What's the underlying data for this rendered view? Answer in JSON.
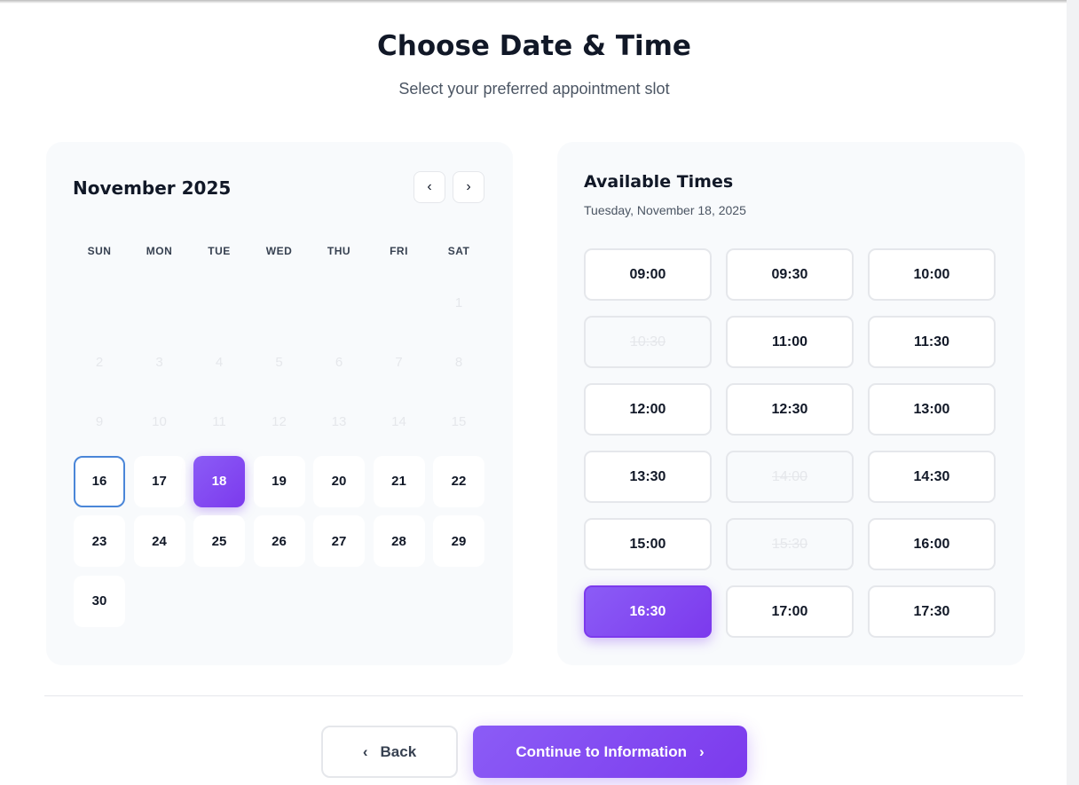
{
  "header": {
    "title": "Choose Date & Time",
    "subtitle": "Select your preferred appointment slot"
  },
  "calendar": {
    "month": "November 2025",
    "prev_icon": "chevron-left-icon",
    "next_icon": "chevron-right-icon",
    "weekdays": [
      "SUN",
      "MON",
      "TUE",
      "WED",
      "THU",
      "FRI",
      "SAT"
    ],
    "first_weekday_index": 6,
    "days_in_month": 30,
    "disabled_through": 15,
    "today": 16,
    "selected": 18
  },
  "times": {
    "title": "Available Times",
    "date": "Tuesday, November 18, 2025",
    "slots": [
      {
        "t": "09:00"
      },
      {
        "t": "09:30"
      },
      {
        "t": "10:00"
      },
      {
        "t": "10:30",
        "disabled": true
      },
      {
        "t": "11:00"
      },
      {
        "t": "11:30"
      },
      {
        "t": "12:00"
      },
      {
        "t": "12:30"
      },
      {
        "t": "13:00"
      },
      {
        "t": "13:30"
      },
      {
        "t": "14:00",
        "disabled": true
      },
      {
        "t": "14:30"
      },
      {
        "t": "15:00"
      },
      {
        "t": "15:30",
        "disabled": true
      },
      {
        "t": "16:00"
      },
      {
        "t": "16:30",
        "selected": true
      },
      {
        "t": "17:00"
      },
      {
        "t": "17:30"
      }
    ]
  },
  "footer": {
    "back": "Back",
    "continue": "Continue to Information"
  },
  "colors": {
    "accent": "#7c3aed",
    "today_border": "#4a86d8"
  }
}
